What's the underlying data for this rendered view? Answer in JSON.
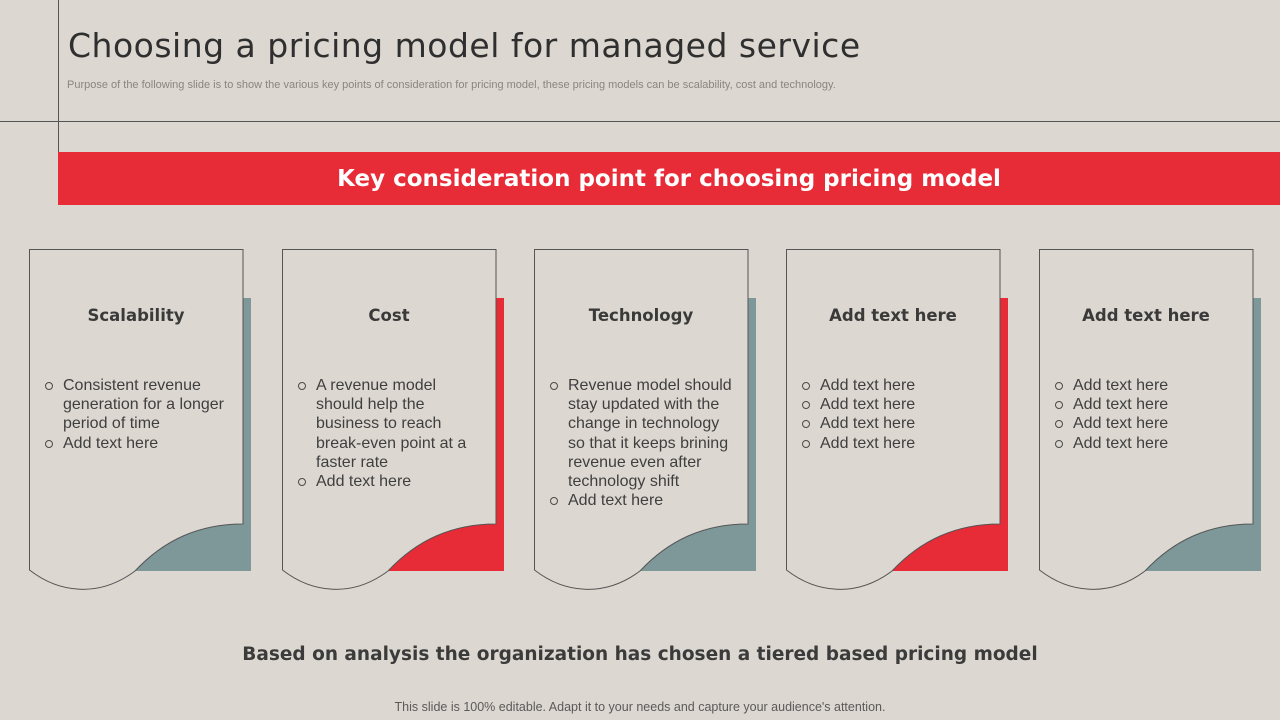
{
  "slide": {
    "title": "Choosing a pricing model for managed service",
    "subtitle": "Purpose of the following slide is to show the various key points of consideration for pricing model, these pricing models can be scalability, cost and technology.",
    "banner": "Key consideration point for choosing pricing model",
    "conclusion": "Based on analysis the organization  has chosen a tiered based pricing model",
    "footer": "This slide is 100% editable. Adapt it to your needs and capture your audience's attention."
  },
  "colors": {
    "red": "#e72b37",
    "teal": "#7e9899",
    "background": "#dcd7d0"
  },
  "cards": [
    {
      "title": "Scalability",
      "accent": "teal",
      "items": [
        "Consistent revenue generation for a longer period of time",
        "Add text here"
      ]
    },
    {
      "title": "Cost",
      "accent": "red",
      "items": [
        "A revenue model should help the business to reach break-even point at a faster rate",
        "Add text here"
      ]
    },
    {
      "title": "Technology",
      "accent": "teal",
      "items": [
        "Revenue model should stay updated with the change in technology so that it keeps brining revenue even after technology shift",
        "Add text here"
      ]
    },
    {
      "title": "Add text here",
      "accent": "red",
      "items": [
        "Add text here",
        "Add text here",
        "Add text here",
        "Add text here"
      ]
    },
    {
      "title": "Add text here",
      "accent": "teal",
      "items": [
        "Add text here",
        "Add text here",
        "Add text here",
        "Add text here"
      ]
    }
  ]
}
